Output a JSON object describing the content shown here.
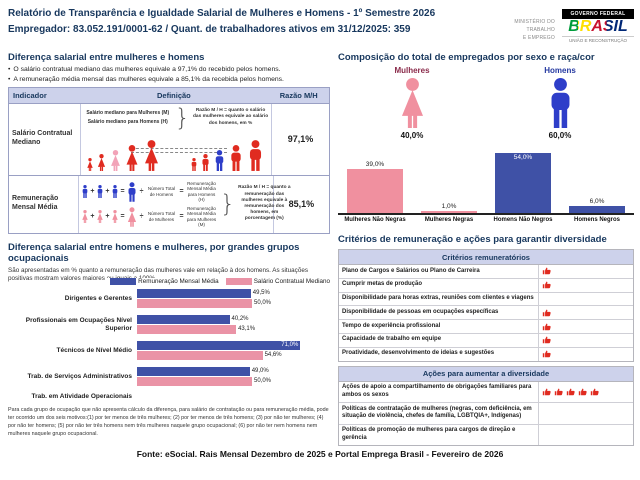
{
  "header": {
    "title": "Relatório de Transparência e Igualdade Salarial de Mulheres e Homens - 1º Semestre 2026",
    "subtitle": "Empregador: 83.052.191/0001-62 / Quant. de trabalhadores ativos em 31/12/2025: 359",
    "ministry": [
      "MINISTÉRIO DO",
      "TRABALHO",
      "E EMPREGO"
    ],
    "gov": {
      "top": "GOVERNO FEDERAL",
      "brand": "BRASIL",
      "tagline": "UNIÃO E RECONSTRUÇÃO"
    }
  },
  "palette": {
    "navy": "#17375D",
    "lavender": "#CDD2EB",
    "bar_blue": "#3F51A6",
    "bar_pink": "#EA93A6",
    "pictogram_red": "#E02B20",
    "median_woman_pink": "#F2A3B8",
    "median_man_blue": "#2E3EC9",
    "female_icon_pink": "#F0909F",
    "male_icon_blue": "#2E3EC9",
    "check_red": "#E02B20"
  },
  "salary_gap": {
    "title": "Diferença salarial entre mulheres e homens",
    "bullets": [
      "O salário contratual mediano das mulheres equivale a 97,1% do recebido pelos homens.",
      "A remuneração média mensal das mulheres equivale a 85,1% da recebida pelos homens."
    ],
    "table": {
      "headers": [
        "Indicador",
        "Definição",
        "Razão M/H"
      ],
      "rows": [
        {
          "indicator": "Salário Contratual Mediano",
          "ratio": "97,1%",
          "def_label_women": "Salário mediano para Mulheres (M)",
          "def_label_men": "Salário mediano para Homens (H)",
          "ratio_note": "Razão M / H = quanto o salário das mulheres equivale ao salário dos homens, em %"
        },
        {
          "indicator": "Remuneração Mensal Média",
          "ratio": "85,1%",
          "eq_men": {
            "count": "Número Total de Homens",
            "avg": "Remuneração Mensal Média para Homens (H)"
          },
          "eq_women": {
            "count": "Número Total de Mulheres",
            "avg": "Remuneração Mensal Média para Mulheres (M)"
          },
          "ratio_note": "Razão M / H = quanto a remuneração das mulheres equivale à remuneração dos homens, em porcentagem (%)"
        }
      ]
    }
  },
  "occupational": {
    "title": "Diferença salarial entre homens e mulheres, por grandes grupos ocupacionais",
    "subtitle": "São apresentadas em % quanto a remuneração das mulheres vale em relação à dos homens. As situações positivas mostram valores maiores ou iguais a 100%"
  },
  "footnote": {
    "text": "Para cada grupo de ocupação que não apresenta cálculo da diferença, para salário de contratação ou para remuneração média, pode ter ocorrido um dos seis motivos:(1) por ter menos de três mulheres; (2) por ter menos de três homens; (3) por não ter mulheres; (4) por não ter homens; (5) por não ter três homens nem três mulheres naquele grupo ocupacional; (6) por não ter nem homens nem mulheres naquele grupo ocupacional."
  },
  "composition": {
    "title": "Composição do total de empregados por sexo e raça/cor",
    "female_label": "Mulheres",
    "female_pct": "40,0%",
    "male_label": "Homens",
    "male_pct": "60,0%"
  },
  "criteria": {
    "title": "Critérios de remuneração e ações para garantir diversidade",
    "remuneration": {
      "header": "Critérios remuneratórios",
      "rows": [
        {
          "label": "Plano de Cargos e Salários ou Plano de Carreira",
          "icons": 1
        },
        {
          "label": "Cumprir metas de produção",
          "icons": 1
        },
        {
          "label": "Disponibilidade para horas extras, reuniões com clientes e viagens",
          "icons": 0
        },
        {
          "label": "Disponibilidade de pessoas em ocupações específicas",
          "icons": 1
        },
        {
          "label": "Tempo de experiência profissional",
          "icons": 1
        },
        {
          "label": "Capacidade de trabalho em equipe",
          "icons": 1
        },
        {
          "label": "Proatividade, desenvolvimento de ideias e sugestões",
          "icons": 1
        }
      ]
    },
    "actions": {
      "header": "Ações para aumentar a diversidade",
      "rows": [
        {
          "label": "Ações de apoio a compartilhamento de obrigações familiares para ambos os sexos",
          "icons": 5
        },
        {
          "label": "Políticas de contratação de mulheres (negras, com deficiência, em situação de violência, chefes de família, LGBTQIA+, Indígenas)",
          "icons": 0
        },
        {
          "label": "Políticas de promoção de mulheres para cargos de direção e gerência",
          "icons": 0
        }
      ]
    }
  },
  "footer": {
    "text": "Fonte: eSocial. Rais Mensal Dezembro de 2025 e Portal Emprega Brasil - Fevereiro de 2026"
  },
  "chart_data": [
    {
      "id": "occupational_gap",
      "type": "bar",
      "orientation": "horizontal",
      "title": "Diferença salarial entre homens e mulheres, por grandes grupos ocupacionais",
      "xlabel": "",
      "ylabel": "",
      "xlim": [
        0,
        100
      ],
      "unit": "%",
      "grid": false,
      "legend_position": "top-right",
      "categories": [
        "Dirigentes e Gerentes",
        "Profissionais em Ocupações Nível Superior",
        "Técnicos de Nível Médio",
        "Trab. de Serviços Administrativos",
        "Trab. em Atividade Operacionais"
      ],
      "series": [
        {
          "name": "Remuneração Mensal Média",
          "color": "#3F51A6",
          "values": [
            49.5,
            40.2,
            71.0,
            49.0,
            null
          ],
          "labels": [
            "49,5%",
            "40,2%",
            "71,0%",
            "49,0%",
            null
          ],
          "inside": [
            2
          ]
        },
        {
          "name": "Salário Contratual Mediano",
          "color": "#EA93A6",
          "values": [
            50.0,
            43.1,
            54.6,
            50.0,
            null
          ],
          "labels": [
            "50,0%",
            "43,1%",
            "54,6%",
            "50,0%",
            null
          ],
          "inside": []
        }
      ]
    },
    {
      "id": "composition_by_sex_race",
      "type": "bar",
      "orientation": "vertical",
      "title": "Composição do total de empregados por sexo e raça/cor",
      "xlabel": "",
      "ylabel": "",
      "ylim": [
        0,
        60
      ],
      "unit": "%",
      "grid": false,
      "categories": [
        "Mulheres Não Negras",
        "Mulheres Negras",
        "Homens Não Negros",
        "Homens Negros"
      ],
      "values": [
        39.0,
        1.0,
        54.0,
        6.0
      ],
      "labels_display": [
        "39,0%",
        "1,0%",
        "54,0%",
        "6,0%"
      ],
      "colors": [
        "#F0909F",
        "#F0909F",
        "#3F51A6",
        "#3F51A6"
      ],
      "colors_class": [
        "pink",
        "pink",
        "blue",
        "blue"
      ],
      "inside": [
        2
      ]
    }
  ]
}
